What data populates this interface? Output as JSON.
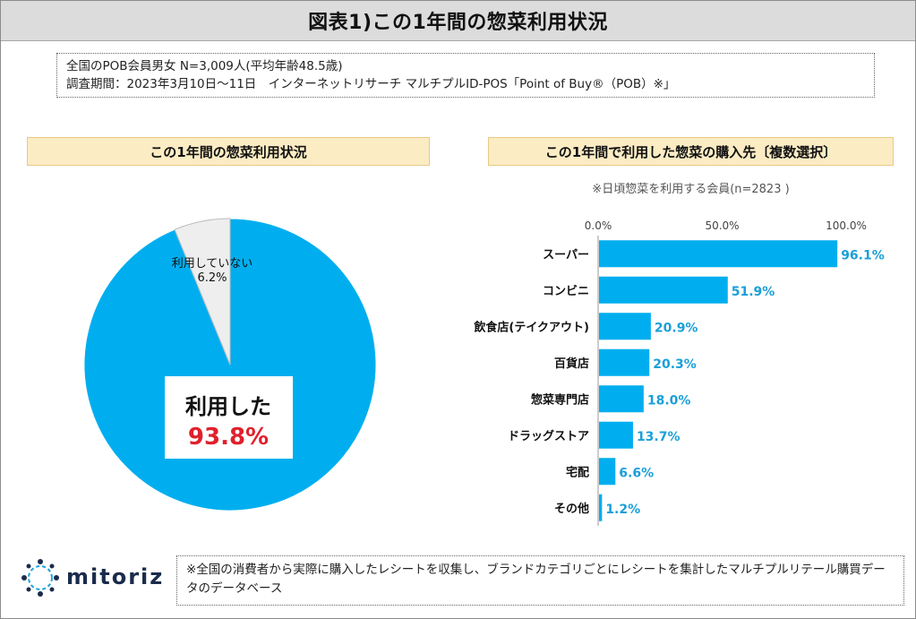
{
  "header": {
    "title": "図表1)この1年間の惣菜利用状況"
  },
  "survey": {
    "line1": "全国のPOB会員男女 N=3,009人(平均年齢48.5歳)",
    "line2": "調査期間：2023年3月10日～11日　インターネットリサーチ マルチプルID-POS「Point of Buy®（POB）※」"
  },
  "left_section": {
    "title": "この1年間の惣菜利用状況"
  },
  "right_section": {
    "title": "この1年間で利用した惣菜の購入先〔複数選択〕",
    "note": "※日頃惣菜を利用する会員(n=2823 )"
  },
  "footer": {
    "text": "※全国の消費者から実際に購入したレシートを収集し、ブランドカテゴリごとにレシートを集計したマルチプルリテール購買データのデータベース",
    "logo_text": "mitoriz"
  },
  "colors": {
    "bar": "#00aeef",
    "label": "#1a9fd9",
    "pie_main": "#00aeef",
    "pie_minor": "#eeeeee",
    "highlight": "#e0202b"
  },
  "chart_data": [
    {
      "type": "pie",
      "title": "この1年間の惣菜利用状況",
      "slices": [
        {
          "label": "利用した",
          "value": 93.8,
          "display": "93.8%"
        },
        {
          "label": "利用していない",
          "value": 6.2,
          "display": "6.2%"
        }
      ]
    },
    {
      "type": "bar",
      "orientation": "horizontal",
      "title": "この1年間で利用した惣菜の購入先〔複数選択〕",
      "categories": [
        "スーパー",
        "コンビニ",
        "飲食店(テイクアウト)",
        "百貨店",
        "惣菜専門店",
        "ドラッグストア",
        "宅配",
        "その他"
      ],
      "values": [
        96.1,
        51.9,
        20.9,
        20.3,
        18.0,
        13.7,
        6.6,
        1.2
      ],
      "value_labels": [
        "96.1%",
        "51.9%",
        "20.9%",
        "20.3%",
        "18.0%",
        "13.7%",
        "6.6%",
        "1.2%"
      ],
      "xlim": [
        0,
        100
      ],
      "ticks": [
        0,
        50,
        100
      ],
      "tick_labels": [
        "0.0%",
        "50.0%",
        "100.0%"
      ],
      "grid": false,
      "legend": "none"
    }
  ]
}
